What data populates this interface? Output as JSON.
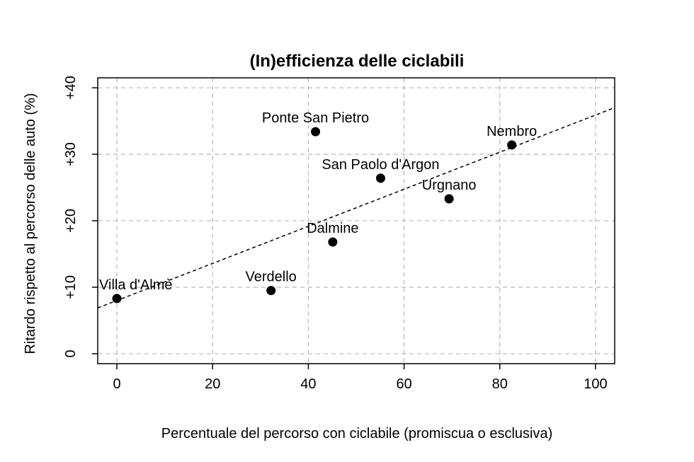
{
  "chart_data": {
    "type": "scatter",
    "title": "(In)efficienza delle ciclabili",
    "xlabel": "Percentuale del percorso con ciclabile (promiscua o esclusiva)",
    "ylabel": "Ritardo rispetto al percorso delle auto (%)",
    "xlim": [
      -4,
      104
    ],
    "ylim": [
      -1.5,
      41.5
    ],
    "x_ticks": [
      0,
      20,
      40,
      60,
      80,
      100
    ],
    "x_tick_labels": [
      "0",
      "20",
      "40",
      "60",
      "80",
      "100"
    ],
    "y_ticks": [
      0,
      10,
      20,
      30,
      40
    ],
    "y_tick_labels": [
      "0",
      "+10",
      "+20",
      "+30",
      "+40"
    ],
    "grid": true,
    "points": [
      {
        "label": "Villa d'Almè",
        "x": 0,
        "y": 8.3
      },
      {
        "label": "Verdello",
        "x": 32.2,
        "y": 9.5
      },
      {
        "label": "Dalmine",
        "x": 45.1,
        "y": 16.8
      },
      {
        "label": "Ponte San Pietro",
        "x": 41.5,
        "y": 33.4
      },
      {
        "label": "San Paolo d'Argon",
        "x": 55.1,
        "y": 26.4
      },
      {
        "label": "Urgnano",
        "x": 69.4,
        "y": 23.3
      },
      {
        "label": "Nembro",
        "x": 82.5,
        "y": 31.4
      }
    ],
    "trendline": {
      "style": "dashed",
      "intercept": 8.0,
      "slope": 0.279
    }
  }
}
